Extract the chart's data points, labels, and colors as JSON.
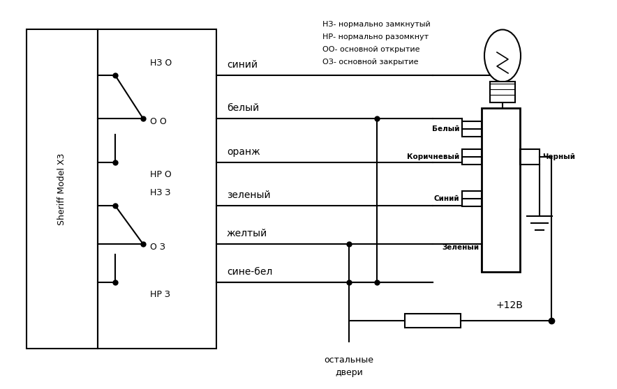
{
  "legend_text": [
    "НЗ- нормально замкнутый",
    "НР- нормально разомкнут",
    "ОО- основной открытие",
    "ОЗ- основной закрытие"
  ],
  "sheriff_text": "Sheriff Model X3",
  "wire_labels_right": [
    "синий",
    "белый",
    "оранж",
    "зеленый",
    "желтый",
    "сине-бел"
  ],
  "switch_labels": [
    "НЗ О",
    "О О",
    "НР О",
    "НЗ З",
    "О З",
    "НР З"
  ],
  "connector_labels": [
    "Белый",
    "Коричневый",
    "Синий",
    "Зеленый"
  ],
  "black_label": "Черный",
  "plus12_label": "+12В",
  "doors_label1": "остальные",
  "doors_label2": "двери"
}
